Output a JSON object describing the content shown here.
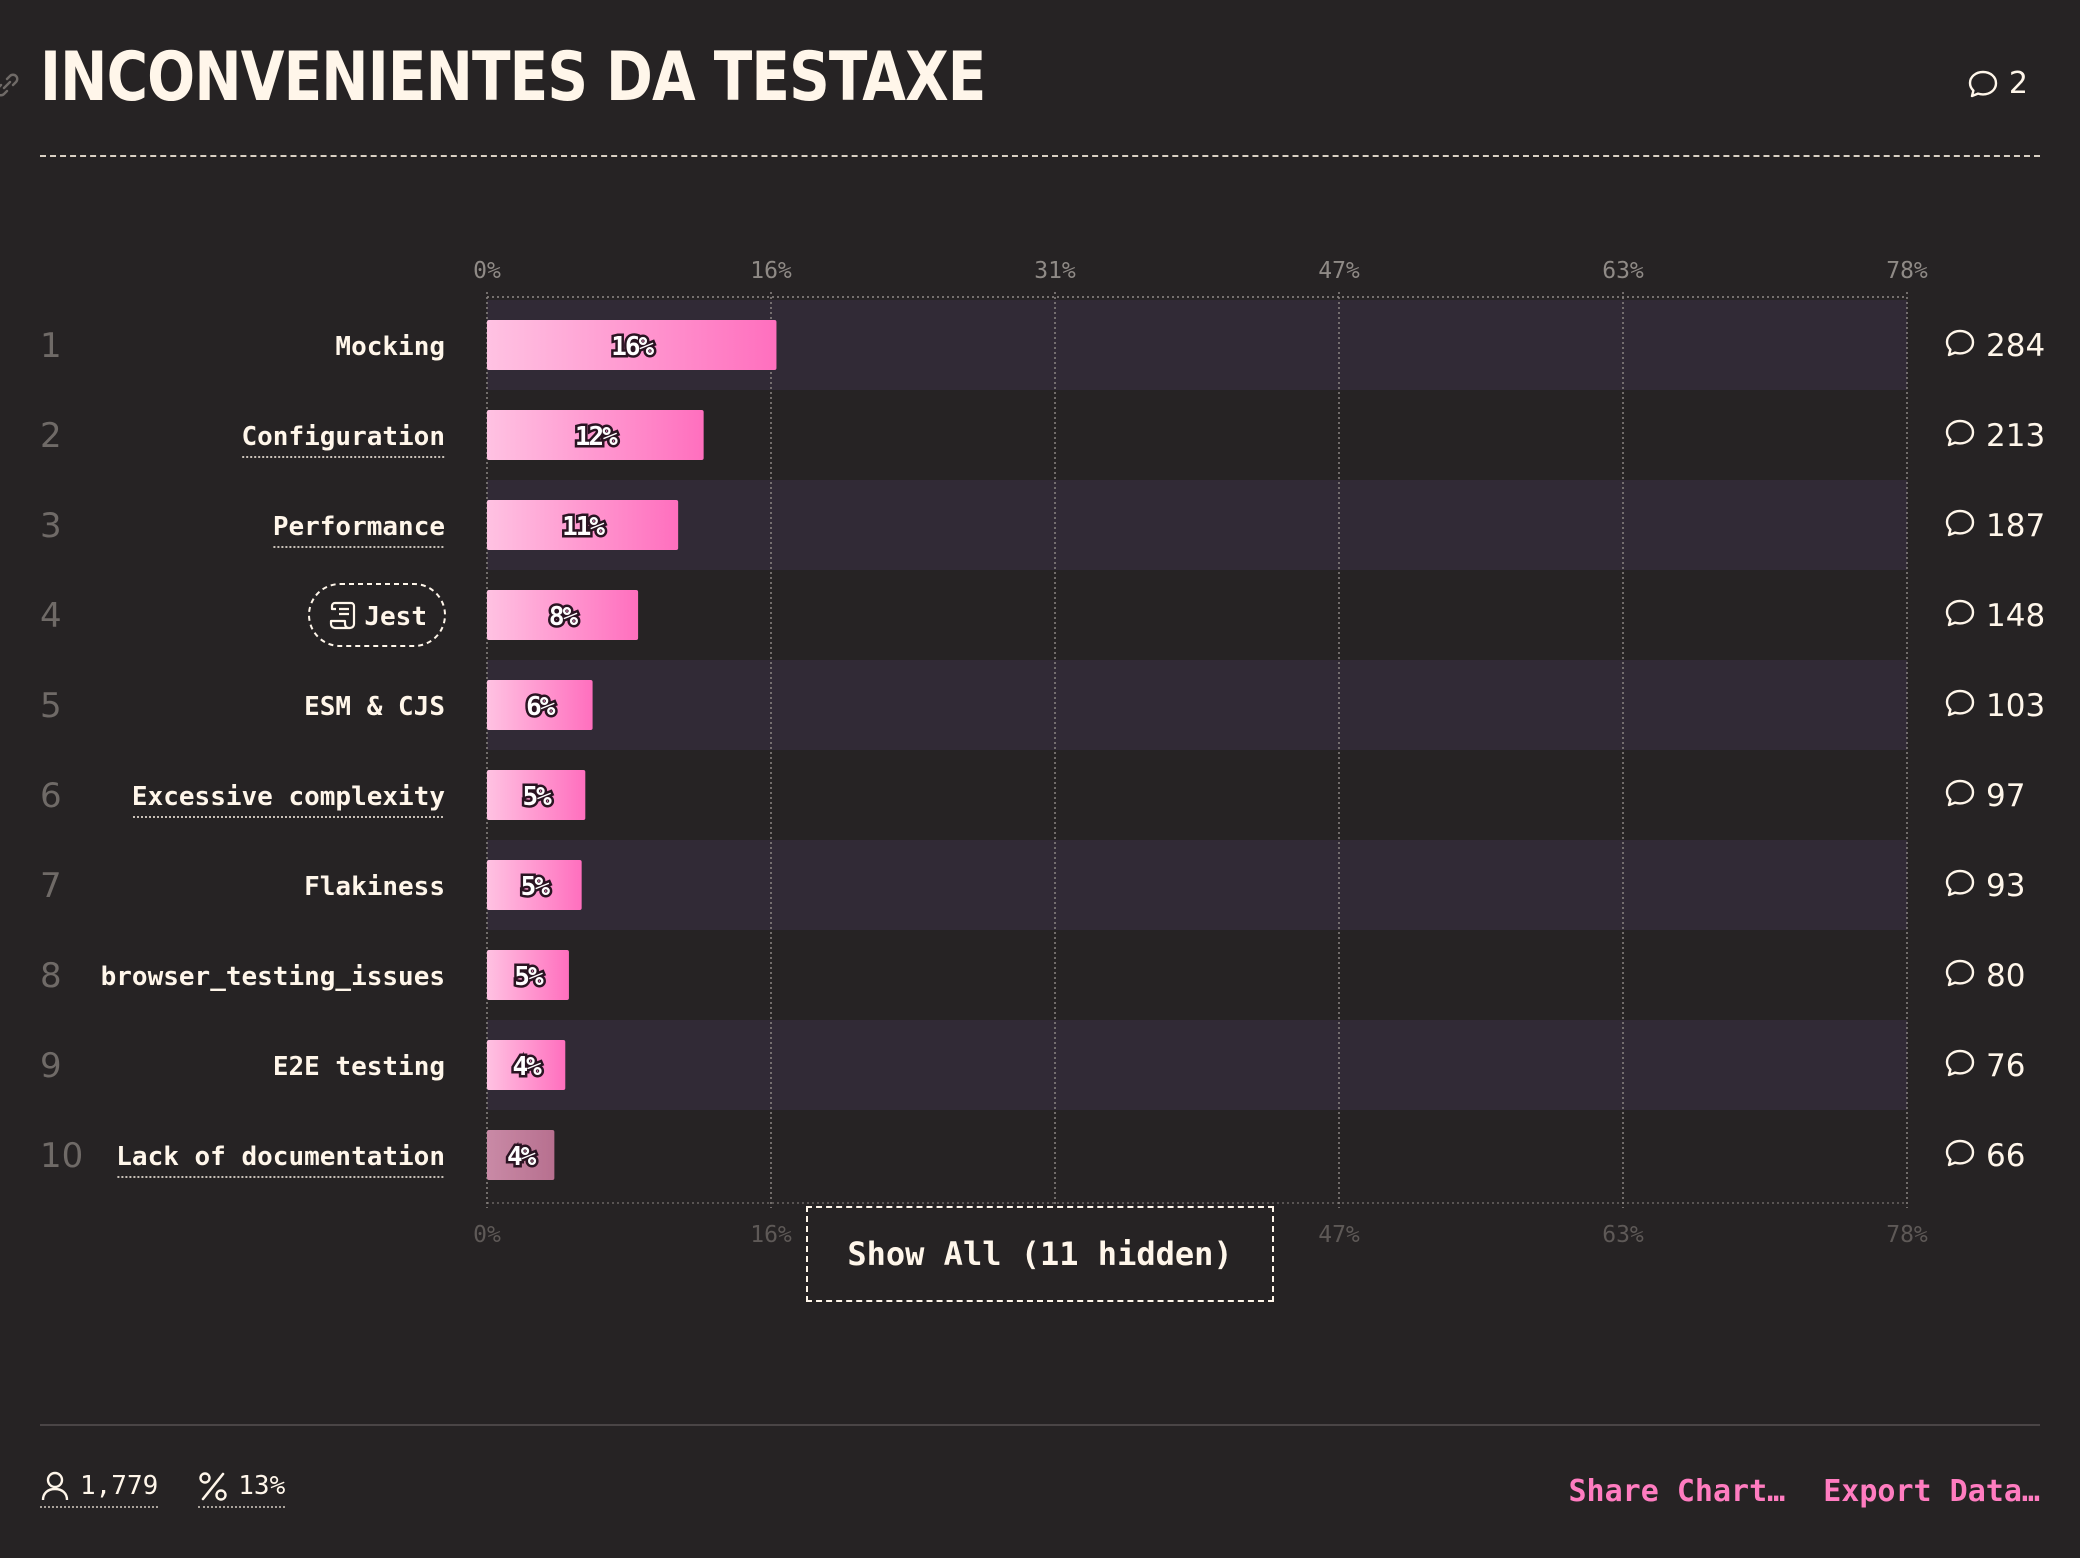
{
  "header": {
    "title": "INCONVENIENTES DA TESTAXE",
    "comments_count": "2"
  },
  "chart_data": {
    "type": "bar",
    "orientation": "horizontal",
    "xlim": [
      0,
      78
    ],
    "ticks": [
      "0%",
      "16%",
      "31%",
      "47%",
      "63%",
      "78%"
    ],
    "tick_values": [
      0,
      15.6,
      31.2,
      46.8,
      62.4,
      78
    ],
    "categories": [
      "Mocking",
      "Configuration",
      "Performance",
      "Jest",
      "ESM & CJS",
      "Excessive complexity",
      "Flakiness",
      "browser_testing_issues",
      "E2E testing",
      "Lack of documentation"
    ],
    "ranks": [
      "1",
      "2",
      "3",
      "4",
      "5",
      "6",
      "7",
      "8",
      "9",
      "10"
    ],
    "values": [
      16,
      12,
      11,
      8,
      6,
      5,
      5,
      5,
      4,
      4
    ],
    "bar_extent": [
      15.9,
      11.9,
      10.5,
      8.3,
      5.8,
      5.4,
      5.2,
      4.5,
      4.3,
      3.7
    ],
    "value_labels": [
      "16%",
      "12%",
      "11%",
      "8%",
      "6%",
      "5%",
      "5%",
      "5%",
      "4%",
      "4%"
    ],
    "comments": [
      "284",
      "213",
      "187",
      "148",
      "103",
      "97",
      "93",
      "80",
      "76",
      "66"
    ],
    "dotted_underline": [
      false,
      true,
      true,
      false,
      false,
      true,
      false,
      false,
      false,
      true
    ],
    "tool_badge": [
      false,
      false,
      false,
      true,
      false,
      false,
      false,
      false,
      false,
      false
    ],
    "grid": true,
    "colors": {
      "bar_start": "#ffc2e2",
      "bar_end": "#ff6fbe",
      "bar_last": "#b7708f",
      "row_stripe": "#312a36"
    }
  },
  "show_all_label": "Show All (11 hidden)",
  "footer": {
    "respondents": "1,779",
    "percentage": "13%",
    "share_label": "Share Chart…",
    "export_label": "Export Data…"
  }
}
